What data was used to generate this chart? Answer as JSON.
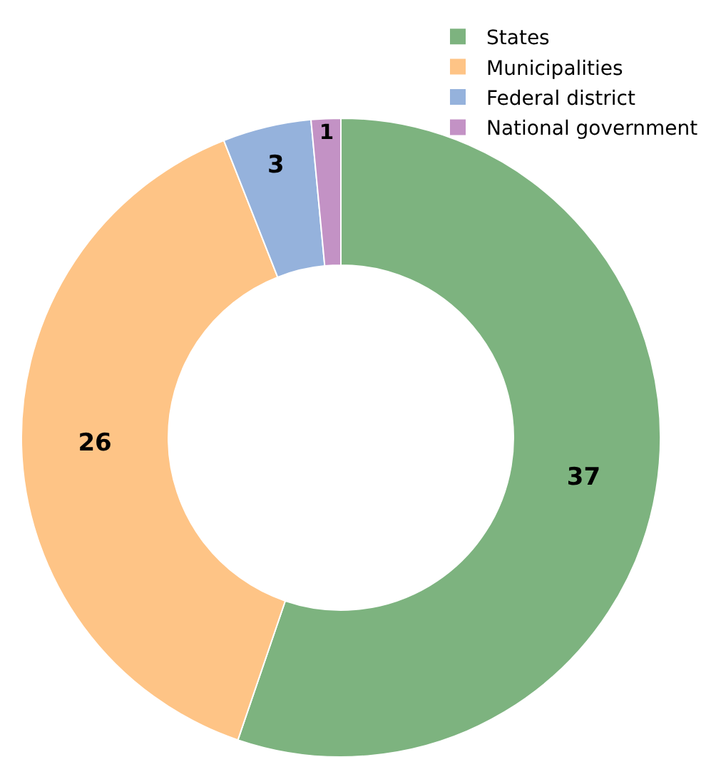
{
  "chart_data": {
    "type": "donut",
    "categories": [
      "States",
      "Municipalities",
      "Federal district",
      "National government"
    ],
    "values": [
      37,
      26,
      3,
      1
    ],
    "colors": [
      "#7db37f",
      "#fec486",
      "#95b2dc",
      "#c392c5"
    ],
    "data_labels": true,
    "legend": "top right"
  }
}
